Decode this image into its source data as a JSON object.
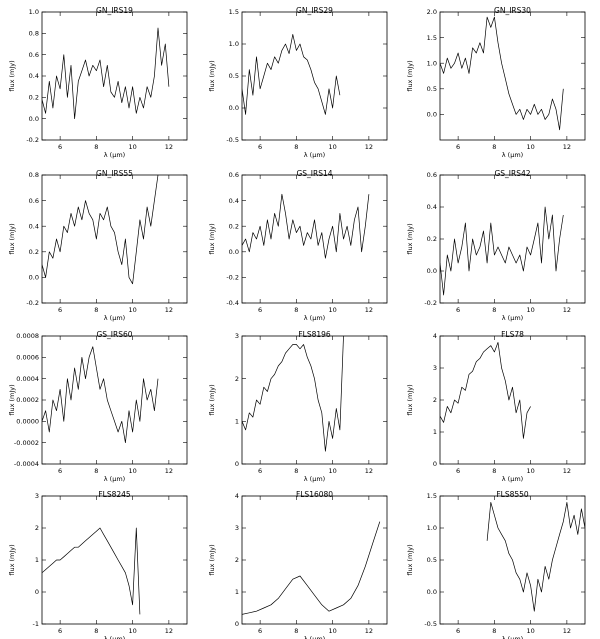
{
  "chart_data": [
    {
      "type": "line",
      "title": "GN_IRS19",
      "xlabel": "λ (μm)",
      "ylabel": "flux (mJy)",
      "xlim": [
        5,
        13
      ],
      "ylim": [
        -0.2,
        1.0
      ],
      "xticks": [
        "6",
        "8",
        "10",
        "12"
      ],
      "yticks": [
        "-0.2",
        "0.0",
        "0.2",
        "0.4",
        "0.6",
        "0.8",
        "1.0"
      ],
      "series": [
        {
          "x": [
            5.0,
            5.2,
            5.4,
            5.6,
            5.8,
            6.0,
            6.2,
            6.4,
            6.6,
            6.8,
            7.0,
            7.2,
            7.4,
            7.6,
            7.8,
            8.0,
            8.2,
            8.4,
            8.6,
            8.8,
            9.0,
            9.2,
            9.4,
            9.6,
            9.8,
            10.0,
            10.2,
            10.4,
            10.6,
            10.8,
            11.0,
            11.2,
            11.4,
            11.6,
            11.8,
            12.0
          ],
          "y": [
            0.18,
            0.05,
            0.35,
            0.1,
            0.4,
            0.28,
            0.6,
            0.2,
            0.5,
            0.0,
            0.35,
            0.45,
            0.55,
            0.4,
            0.5,
            0.45,
            0.55,
            0.3,
            0.5,
            0.25,
            0.2,
            0.35,
            0.15,
            0.3,
            0.1,
            0.3,
            0.05,
            0.2,
            0.1,
            0.3,
            0.2,
            0.4,
            0.85,
            0.5,
            0.7,
            0.3
          ]
        }
      ]
    },
    {
      "type": "line",
      "title": "GN_IRS29",
      "xlabel": "λ (μm)",
      "ylabel": "flux (mJy)",
      "xlim": [
        5,
        13
      ],
      "ylim": [
        -0.5,
        1.5
      ],
      "xticks": [
        "6",
        "8",
        "10",
        "12"
      ],
      "yticks": [
        "-0.5",
        "0.0",
        "0.5",
        "1.0",
        "1.5"
      ],
      "series": [
        {
          "x": [
            5.0,
            5.2,
            5.4,
            5.6,
            5.8,
            6.0,
            6.2,
            6.4,
            6.6,
            6.8,
            7.0,
            7.2,
            7.4,
            7.6,
            7.8,
            8.0,
            8.2,
            8.4,
            8.6,
            8.8,
            9.0,
            9.2,
            9.4,
            9.6,
            9.8,
            10.0,
            10.2,
            10.4
          ],
          "y": [
            0.3,
            -0.1,
            0.6,
            0.2,
            0.8,
            0.3,
            0.5,
            0.7,
            0.6,
            0.8,
            0.7,
            0.9,
            1.0,
            0.85,
            1.15,
            0.9,
            1.0,
            0.8,
            0.75,
            0.6,
            0.4,
            0.3,
            0.1,
            -0.1,
            0.3,
            0.0,
            0.5,
            0.2
          ]
        }
      ]
    },
    {
      "type": "line",
      "title": "GN_IRS30",
      "xlabel": "λ (μm)",
      "ylabel": "flux (mJy)",
      "xlim": [
        5,
        13
      ],
      "ylim": [
        -0.5,
        2.0
      ],
      "xticks": [
        "6",
        "8",
        "10",
        "12"
      ],
      "yticks": [
        "0.0",
        "0.5",
        "1.0",
        "1.5",
        "2.0"
      ],
      "series": [
        {
          "x": [
            5.0,
            5.2,
            5.4,
            5.6,
            5.8,
            6.0,
            6.2,
            6.4,
            6.6,
            6.8,
            7.0,
            7.2,
            7.4,
            7.6,
            7.8,
            8.0,
            8.2,
            8.4,
            8.6,
            8.8,
            9.0,
            9.2,
            9.4,
            9.6,
            9.8,
            10.0,
            10.2,
            10.4,
            10.6,
            10.8,
            11.0,
            11.2,
            11.4,
            11.6,
            11.8
          ],
          "y": [
            1.0,
            0.8,
            1.1,
            0.9,
            1.0,
            1.2,
            0.9,
            1.1,
            0.8,
            1.3,
            1.2,
            1.4,
            1.2,
            1.9,
            1.7,
            1.9,
            1.4,
            1.0,
            0.7,
            0.4,
            0.2,
            0.0,
            0.1,
            -0.1,
            0.1,
            0.0,
            0.2,
            0.0,
            0.1,
            -0.1,
            0.0,
            0.3,
            0.1,
            -0.3,
            0.5
          ]
        }
      ]
    },
    {
      "type": "line",
      "title": "GN_IRS55",
      "xlabel": "λ (μm)",
      "ylabel": "flux (mJy)",
      "xlim": [
        5,
        13
      ],
      "ylim": [
        -0.2,
        0.8
      ],
      "xticks": [
        "6",
        "8",
        "10",
        "12"
      ],
      "yticks": [
        "-0.2",
        "0.0",
        "0.2",
        "0.4",
        "0.6",
        "0.8"
      ],
      "series": [
        {
          "x": [
            5.0,
            5.2,
            5.4,
            5.6,
            5.8,
            6.0,
            6.2,
            6.4,
            6.6,
            6.8,
            7.0,
            7.2,
            7.4,
            7.6,
            7.8,
            8.0,
            8.2,
            8.4,
            8.6,
            8.8,
            9.0,
            9.2,
            9.4,
            9.6,
            9.8,
            10.0,
            10.2,
            10.4,
            10.6,
            10.8,
            11.0,
            11.2,
            11.4
          ],
          "y": [
            0.1,
            0.0,
            0.2,
            0.15,
            0.3,
            0.2,
            0.4,
            0.35,
            0.5,
            0.4,
            0.55,
            0.45,
            0.6,
            0.5,
            0.45,
            0.3,
            0.5,
            0.45,
            0.55,
            0.4,
            0.35,
            0.2,
            0.1,
            0.3,
            0.0,
            -0.05,
            0.2,
            0.45,
            0.3,
            0.55,
            0.4,
            0.6,
            0.8
          ]
        }
      ]
    },
    {
      "type": "line",
      "title": "GS_IRS14",
      "xlabel": "λ (μm)",
      "ylabel": "flux (mJy)",
      "xlim": [
        5,
        13
      ],
      "ylim": [
        -0.4,
        0.6
      ],
      "xticks": [
        "6",
        "8",
        "10",
        "12"
      ],
      "yticks": [
        "-0.4",
        "-0.2",
        "0.0",
        "0.2",
        "0.4",
        "0.6"
      ],
      "series": [
        {
          "x": [
            5.0,
            5.2,
            5.4,
            5.6,
            5.8,
            6.0,
            6.2,
            6.4,
            6.6,
            6.8,
            7.0,
            7.2,
            7.4,
            7.6,
            7.8,
            8.0,
            8.2,
            8.4,
            8.6,
            8.8,
            9.0,
            9.2,
            9.4,
            9.6,
            9.8,
            10.0,
            10.2,
            10.4,
            10.6,
            10.8,
            11.0,
            11.2,
            11.4,
            11.6,
            11.8,
            12.0
          ],
          "y": [
            0.05,
            0.1,
            0.0,
            0.15,
            0.1,
            0.2,
            0.05,
            0.25,
            0.1,
            0.3,
            0.2,
            0.45,
            0.3,
            0.1,
            0.25,
            0.15,
            0.2,
            0.05,
            0.15,
            0.1,
            0.25,
            0.05,
            0.15,
            -0.05,
            0.1,
            0.2,
            0.0,
            0.3,
            0.1,
            0.2,
            0.05,
            0.25,
            0.35,
            0.0,
            0.2,
            0.45
          ]
        }
      ]
    },
    {
      "type": "line",
      "title": "GS_IRS42",
      "xlabel": "λ (μm)",
      "ylabel": "flux (mJy)",
      "xlim": [
        5,
        13
      ],
      "ylim": [
        -0.2,
        0.6
      ],
      "xticks": [
        "6",
        "8",
        "10",
        "12"
      ],
      "yticks": [
        "-0.2",
        "0.0",
        "0.2",
        "0.4",
        "0.6"
      ],
      "series": [
        {
          "x": [
            5.0,
            5.2,
            5.4,
            5.6,
            5.8,
            6.0,
            6.2,
            6.4,
            6.6,
            6.8,
            7.0,
            7.2,
            7.4,
            7.6,
            7.8,
            8.0,
            8.2,
            8.4,
            8.6,
            8.8,
            9.0,
            9.2,
            9.4,
            9.6,
            9.8,
            10.0,
            10.2,
            10.4,
            10.6,
            10.8,
            11.0,
            11.2,
            11.4,
            11.6,
            11.8
          ],
          "y": [
            0.05,
            -0.15,
            0.1,
            0.0,
            0.2,
            0.05,
            0.15,
            0.3,
            0.0,
            0.2,
            0.1,
            0.15,
            0.25,
            0.05,
            0.3,
            0.1,
            0.15,
            0.1,
            0.05,
            0.15,
            0.1,
            0.05,
            0.1,
            0.0,
            0.15,
            0.1,
            0.2,
            0.3,
            0.05,
            0.4,
            0.2,
            0.35,
            0.0,
            0.2,
            0.35
          ]
        }
      ]
    },
    {
      "type": "line",
      "title": "GS_IRS60",
      "xlabel": "λ (μm)",
      "ylabel": "flux (mJy)",
      "xlim": [
        5,
        13
      ],
      "ylim": [
        -0.0004,
        0.0008
      ],
      "xticks": [
        "6",
        "8",
        "10",
        "12"
      ],
      "yticks": [
        "-0.0004",
        "-0.0002",
        "0.0000",
        "0.0002",
        "0.0004",
        "0.0006",
        "0.0008"
      ],
      "series": [
        {
          "x": [
            5.0,
            5.2,
            5.4,
            5.6,
            5.8,
            6.0,
            6.2,
            6.4,
            6.6,
            6.8,
            7.0,
            7.2,
            7.4,
            7.6,
            7.8,
            8.0,
            8.2,
            8.4,
            8.6,
            8.8,
            9.0,
            9.2,
            9.4,
            9.6,
            9.8,
            10.0,
            10.2,
            10.4,
            10.6,
            10.8,
            11.0,
            11.2,
            11.4
          ],
          "y": [
            0.0,
            0.0001,
            -0.0001,
            0.0002,
            0.0001,
            0.0003,
            0.0,
            0.0004,
            0.0002,
            0.0005,
            0.0003,
            0.0006,
            0.0004,
            0.0006,
            0.0007,
            0.0005,
            0.0003,
            0.0004,
            0.0002,
            0.0001,
            0.0,
            -0.0001,
            0.0,
            -0.0002,
            0.0001,
            -0.0001,
            0.0002,
            0.0,
            0.0004,
            0.0002,
            0.0003,
            0.0001,
            0.0004
          ]
        }
      ]
    },
    {
      "type": "line",
      "title": "FLS8196",
      "xlabel": "λ (μm)",
      "ylabel": "flux (mJy)",
      "xlim": [
        5,
        13
      ],
      "ylim": [
        0,
        3
      ],
      "xticks": [
        "6",
        "8",
        "10",
        "12"
      ],
      "yticks": [
        "0",
        "1",
        "2",
        "3"
      ],
      "series": [
        {
          "x": [
            5.0,
            5.2,
            5.4,
            5.6,
            5.8,
            6.0,
            6.2,
            6.4,
            6.6,
            6.8,
            7.0,
            7.2,
            7.4,
            7.6,
            7.8,
            8.0,
            8.2,
            8.4,
            8.6,
            8.8,
            9.0,
            9.2,
            9.4,
            9.6,
            9.8,
            10.0,
            10.2,
            10.4,
            10.6
          ],
          "y": [
            1.0,
            0.8,
            1.2,
            1.1,
            1.5,
            1.4,
            1.8,
            1.7,
            2.0,
            2.1,
            2.3,
            2.4,
            2.6,
            2.7,
            2.8,
            2.8,
            2.7,
            2.8,
            2.5,
            2.3,
            2.0,
            1.5,
            1.2,
            0.3,
            1.0,
            0.6,
            1.3,
            0.8,
            3.0
          ]
        }
      ]
    },
    {
      "type": "line",
      "title": "FLS78",
      "xlabel": "λ (μm)",
      "ylabel": "flux (mJy)",
      "xlim": [
        5,
        13
      ],
      "ylim": [
        0,
        4
      ],
      "xticks": [
        "6",
        "8",
        "10",
        "12"
      ],
      "yticks": [
        "0",
        "1",
        "2",
        "3",
        "4"
      ],
      "series": [
        {
          "x": [
            5.0,
            5.2,
            5.4,
            5.6,
            5.8,
            6.0,
            6.2,
            6.4,
            6.6,
            6.8,
            7.0,
            7.2,
            7.4,
            7.6,
            7.8,
            8.0,
            8.2,
            8.4,
            8.6,
            8.8,
            9.0,
            9.2,
            9.4,
            9.6,
            9.8,
            10.0
          ],
          "y": [
            1.5,
            1.3,
            1.8,
            1.6,
            2.0,
            1.9,
            2.4,
            2.3,
            2.8,
            2.9,
            3.2,
            3.3,
            3.5,
            3.6,
            3.7,
            3.5,
            3.8,
            3.0,
            2.6,
            2.0,
            2.4,
            1.6,
            2.0,
            0.8,
            1.6,
            1.8
          ]
        }
      ]
    },
    {
      "type": "line",
      "title": "FLS8245",
      "xlabel": "λ (μm)",
      "ylabel": "flux (mJy)",
      "xlim": [
        5,
        13
      ],
      "ylim": [
        -1,
        3
      ],
      "xticks": [
        "6",
        "8",
        "10",
        "12"
      ],
      "yticks": [
        "-1",
        "0",
        "1",
        "2",
        "3"
      ],
      "series": [
        {
          "x": [
            5.0,
            5.2,
            5.4,
            5.6,
            5.8,
            6.0,
            6.2,
            6.4,
            6.6,
            6.8,
            7.0,
            7.2,
            7.4,
            7.6,
            7.8,
            8.0,
            8.2,
            8.4,
            8.6,
            8.8,
            9.0,
            9.2,
            9.4,
            9.6,
            9.8,
            10.0,
            10.2,
            10.4
          ],
          "y": [
            0.6,
            0.7,
            0.8,
            0.9,
            1.0,
            1.0,
            1.1,
            1.2,
            1.3,
            1.4,
            1.4,
            1.5,
            1.6,
            1.7,
            1.8,
            1.9,
            2.0,
            1.8,
            1.6,
            1.4,
            1.2,
            1.0,
            0.8,
            0.6,
            0.2,
            -0.4,
            2.0,
            -0.7
          ]
        }
      ]
    },
    {
      "type": "line",
      "title": "FLS16080",
      "xlabel": "λ (μm)",
      "ylabel": "flux (mJy)",
      "xlim": [
        5,
        13
      ],
      "ylim": [
        0,
        4
      ],
      "xticks": [
        "6",
        "8",
        "10",
        "12"
      ],
      "yticks": [
        "0",
        "1",
        "2",
        "3",
        "4"
      ],
      "series": [
        {
          "x": [
            5.0,
            5.4,
            5.8,
            6.2,
            6.6,
            7.0,
            7.4,
            7.8,
            8.2,
            8.6,
            9.0,
            9.4,
            9.8,
            10.2,
            10.6,
            11.0,
            11.4,
            11.8,
            12.2,
            12.6
          ],
          "y": [
            0.3,
            0.35,
            0.4,
            0.5,
            0.6,
            0.8,
            1.1,
            1.4,
            1.5,
            1.2,
            0.9,
            0.6,
            0.4,
            0.5,
            0.6,
            0.8,
            1.2,
            1.8,
            2.5,
            3.2
          ]
        }
      ]
    },
    {
      "type": "line",
      "title": "FLS8550",
      "xlabel": "λ (μm)",
      "ylabel": "flux (mJy)",
      "xlim": [
        5,
        13
      ],
      "ylim": [
        -0.5,
        1.5
      ],
      "xticks": [
        "6",
        "8",
        "10",
        "12"
      ],
      "yticks": [
        "-0.5",
        "0.0",
        "0.5",
        "1.0",
        "1.5"
      ],
      "series": [
        {
          "x": [
            7.6,
            7.8,
            8.0,
            8.2,
            8.4,
            8.6,
            8.8,
            9.0,
            9.2,
            9.4,
            9.6,
            9.8,
            10.0,
            10.2,
            10.4,
            10.6,
            10.8,
            11.0,
            11.2,
            11.4,
            11.6,
            11.8,
            12.0,
            12.2,
            12.4,
            12.6,
            12.8,
            13.0
          ],
          "y": [
            0.8,
            1.4,
            1.2,
            1.0,
            0.9,
            0.8,
            0.6,
            0.5,
            0.3,
            0.2,
            0.0,
            0.3,
            0.1,
            -0.3,
            0.2,
            0.0,
            0.4,
            0.2,
            0.5,
            0.7,
            0.9,
            1.1,
            1.4,
            1.0,
            1.2,
            0.9,
            1.3,
            1.0
          ]
        }
      ]
    }
  ]
}
